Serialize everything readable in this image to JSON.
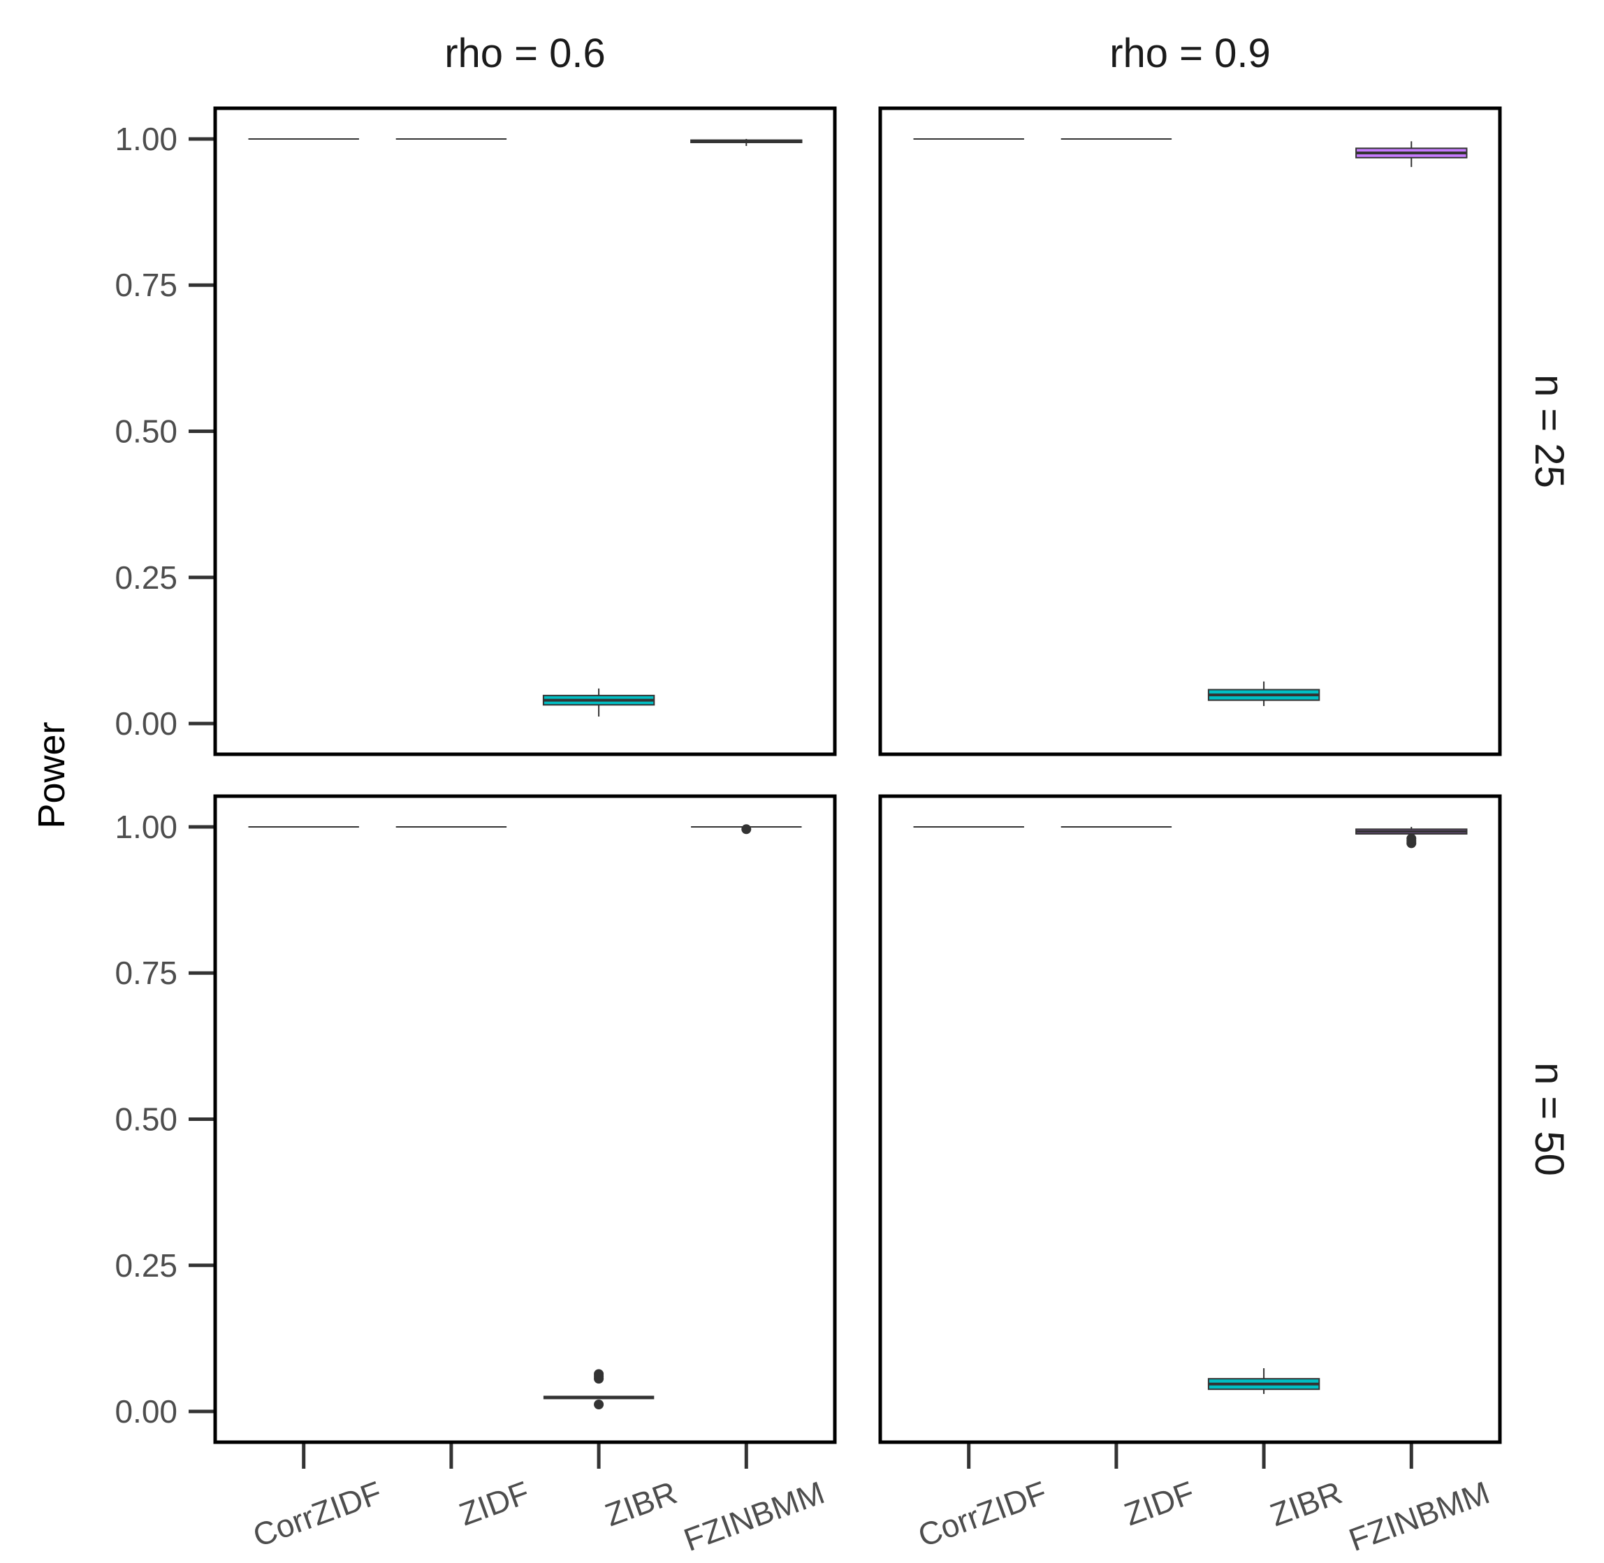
{
  "chart_data": {
    "type": "box",
    "ylabel": "Power",
    "ylim": [
      0,
      1.05
    ],
    "yticks": [
      "0.00",
      "0.25",
      "0.50",
      "0.75",
      "1.00"
    ],
    "ytick_values": [
      0,
      0.25,
      0.5,
      0.75,
      1.0
    ],
    "categories": [
      "CorrZIDF",
      "ZIDF",
      "ZIBR",
      "FZINBMM"
    ],
    "facet_cols": [
      "rho = 0.6",
      "rho = 0.9"
    ],
    "facet_rows": [
      "n = 25",
      "n = 50"
    ],
    "colors": {
      "CorrZIDF": "#f8766d",
      "ZIDF": "#7cae00",
      "ZIBR": "#00bfc4",
      "FZINBMM": "#c77cff"
    },
    "panels": [
      {
        "row": "n = 25",
        "col": "rho = 0.6",
        "boxes": [
          {
            "category": "CorrZIDF",
            "min": 1.0,
            "q1": 1.0,
            "median": 1.0,
            "q3": 1.0,
            "max": 1.0,
            "outliers": []
          },
          {
            "category": "ZIDF",
            "min": 1.0,
            "q1": 1.0,
            "median": 1.0,
            "q3": 1.0,
            "max": 1.0,
            "outliers": []
          },
          {
            "category": "ZIBR",
            "min": 0.012,
            "q1": 0.032,
            "median": 0.04,
            "q3": 0.048,
            "max": 0.06,
            "outliers": []
          },
          {
            "category": "FZINBMM",
            "min": 0.988,
            "q1": 0.994,
            "median": 0.996,
            "q3": 0.998,
            "max": 1.0,
            "outliers": []
          }
        ]
      },
      {
        "row": "n = 25",
        "col": "rho = 0.9",
        "boxes": [
          {
            "category": "CorrZIDF",
            "min": 1.0,
            "q1": 1.0,
            "median": 1.0,
            "q3": 1.0,
            "max": 1.0,
            "outliers": []
          },
          {
            "category": "ZIDF",
            "min": 1.0,
            "q1": 1.0,
            "median": 1.0,
            "q3": 1.0,
            "max": 1.0,
            "outliers": []
          },
          {
            "category": "ZIBR",
            "min": 0.03,
            "q1": 0.04,
            "median": 0.049,
            "q3": 0.058,
            "max": 0.072,
            "outliers": []
          },
          {
            "category": "FZINBMM",
            "min": 0.952,
            "q1": 0.968,
            "median": 0.976,
            "q3": 0.984,
            "max": 0.996,
            "outliers": []
          }
        ]
      },
      {
        "row": "n = 50",
        "col": "rho = 0.6",
        "boxes": [
          {
            "category": "CorrZIDF",
            "min": 1.0,
            "q1": 1.0,
            "median": 1.0,
            "q3": 1.0,
            "max": 1.0,
            "outliers": []
          },
          {
            "category": "ZIDF",
            "min": 1.0,
            "q1": 1.0,
            "median": 1.0,
            "q3": 1.0,
            "max": 1.0,
            "outliers": []
          },
          {
            "category": "ZIBR",
            "min": 0.024,
            "q1": 0.024,
            "median": 0.024,
            "q3": 0.024,
            "max": 0.024,
            "outliers": [
              0.012,
              0.056,
              0.06,
              0.064
            ]
          },
          {
            "category": "FZINBMM",
            "min": 1.0,
            "q1": 1.0,
            "median": 1.0,
            "q3": 1.0,
            "max": 1.0,
            "outliers": [
              0.996
            ]
          }
        ]
      },
      {
        "row": "n = 50",
        "col": "rho = 0.9",
        "boxes": [
          {
            "category": "CorrZIDF",
            "min": 1.0,
            "q1": 1.0,
            "median": 1.0,
            "q3": 1.0,
            "max": 1.0,
            "outliers": []
          },
          {
            "category": "ZIDF",
            "min": 1.0,
            "q1": 1.0,
            "median": 1.0,
            "q3": 1.0,
            "max": 1.0,
            "outliers": []
          },
          {
            "category": "ZIBR",
            "min": 0.03,
            "q1": 0.038,
            "median": 0.047,
            "q3": 0.056,
            "max": 0.074,
            "outliers": []
          },
          {
            "category": "FZINBMM",
            "min": 0.984,
            "q1": 0.988,
            "median": 0.992,
            "q3": 0.996,
            "max": 1.0,
            "outliers": [
              0.972,
              0.976,
              0.98
            ]
          }
        ]
      }
    ]
  }
}
